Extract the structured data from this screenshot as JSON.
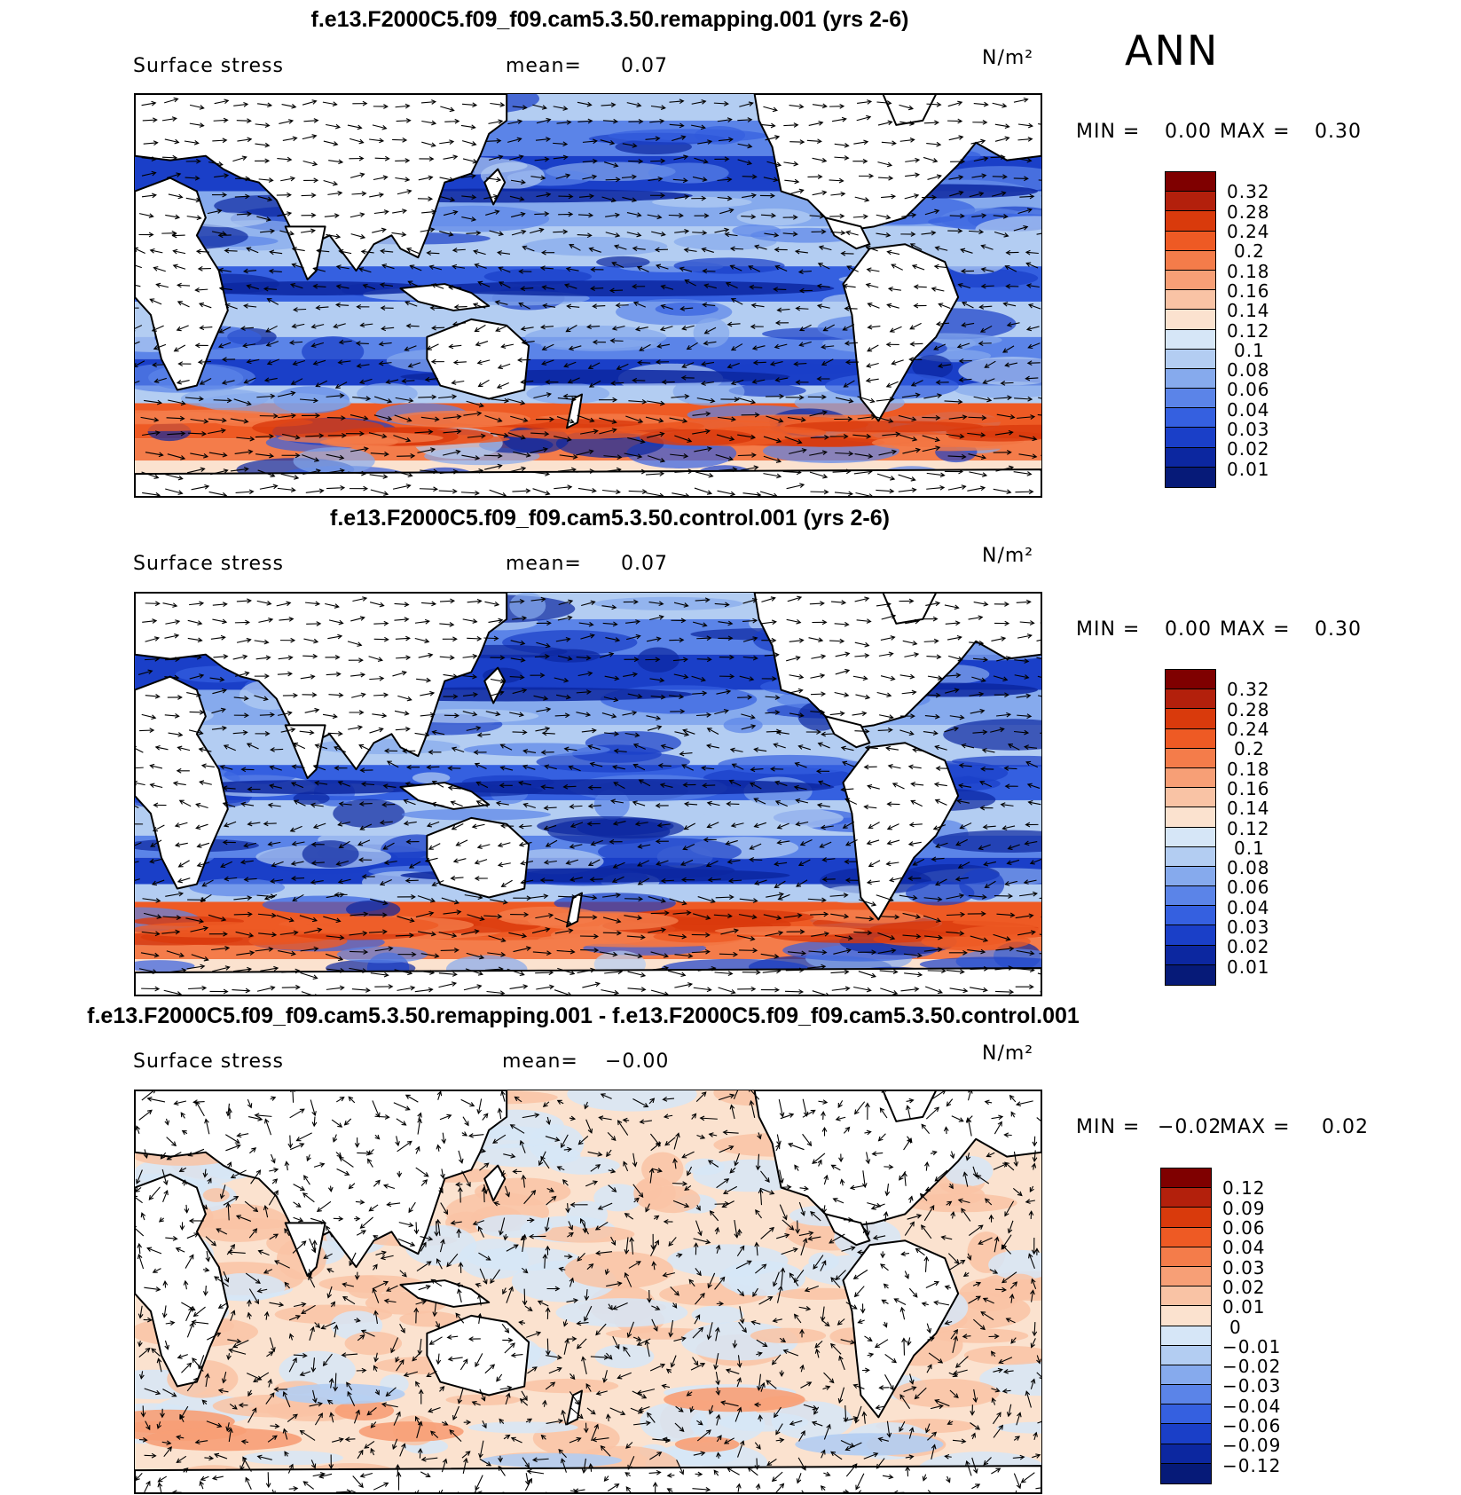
{
  "season": "ANN",
  "panels": [
    {
      "title": "f.e13.F2000C5.f09_f09.cam5.3.50.remapping.001 (yrs 2-6)",
      "variable": "Surface stress",
      "mean_label": "mean=",
      "mean_value": "0.07",
      "units": "N/m²",
      "min_label": "MIN =",
      "min_value": "0.00",
      "max_label": "MAX =",
      "max_value": "0.30",
      "colorbar": {
        "labels": [
          "0.32",
          "0.28",
          "0.24",
          "0.2",
          "0.18",
          "0.16",
          "0.14",
          "0.12",
          "0.1",
          "0.08",
          "0.06",
          "0.04",
          "0.03",
          "0.02",
          "0.01"
        ],
        "colors": [
          "#7f0000",
          "#b3200c",
          "#d93a0c",
          "#ee5a24",
          "#f47c4a",
          "#f79f76",
          "#f9c3a5",
          "#fbe2cf",
          "#d6e6f7",
          "#b3cdf2",
          "#86aaed",
          "#5b84e8",
          "#3560e0",
          "#1a3fc8",
          "#0c27a0",
          "#061a78"
        ]
      },
      "arrows_description": "surface stress vectors"
    },
    {
      "title": "f.e13.F2000C5.f09_f09.cam5.3.50.control.001 (yrs 2-6)",
      "variable": "Surface stress",
      "mean_label": "mean=",
      "mean_value": "0.07",
      "units": "N/m²",
      "min_label": "MIN =",
      "min_value": "0.00",
      "max_label": "MAX =",
      "max_value": "0.30",
      "colorbar": {
        "labels": [
          "0.32",
          "0.28",
          "0.24",
          "0.2",
          "0.18",
          "0.16",
          "0.14",
          "0.12",
          "0.1",
          "0.08",
          "0.06",
          "0.04",
          "0.03",
          "0.02",
          "0.01"
        ],
        "colors": [
          "#7f0000",
          "#b3200c",
          "#d93a0c",
          "#ee5a24",
          "#f47c4a",
          "#f79f76",
          "#f9c3a5",
          "#fbe2cf",
          "#d6e6f7",
          "#b3cdf2",
          "#86aaed",
          "#5b84e8",
          "#3560e0",
          "#1a3fc8",
          "#0c27a0",
          "#061a78"
        ]
      }
    },
    {
      "title": "f.e13.F2000C5.f09_f09.cam5.3.50.remapping.001 - f.e13.F2000C5.f09_f09.cam5.3.50.control.001",
      "variable": "Surface stress",
      "mean_label": "mean=",
      "mean_value": "−0.00",
      "units": "N/m²",
      "min_label": "MIN =",
      "min_value": "−0.02",
      "max_label": "MAX =",
      "max_value": "0.02",
      "colorbar": {
        "labels": [
          "0.12",
          "0.09",
          "0.06",
          "0.04",
          "0.03",
          "0.02",
          "0.01",
          "0",
          "−0.01",
          "−0.02",
          "−0.03",
          "−0.04",
          "−0.06",
          "−0.09",
          "−0.12"
        ],
        "colors": [
          "#7f0000",
          "#b3200c",
          "#d93a0c",
          "#ee5a24",
          "#f47c4a",
          "#f79f76",
          "#f9c3a5",
          "#fbe2cf",
          "#d6e6f7",
          "#b3cdf2",
          "#86aaed",
          "#5b84e8",
          "#3560e0",
          "#1a3fc8",
          "#0c27a0",
          "#061a78"
        ]
      }
    }
  ]
}
